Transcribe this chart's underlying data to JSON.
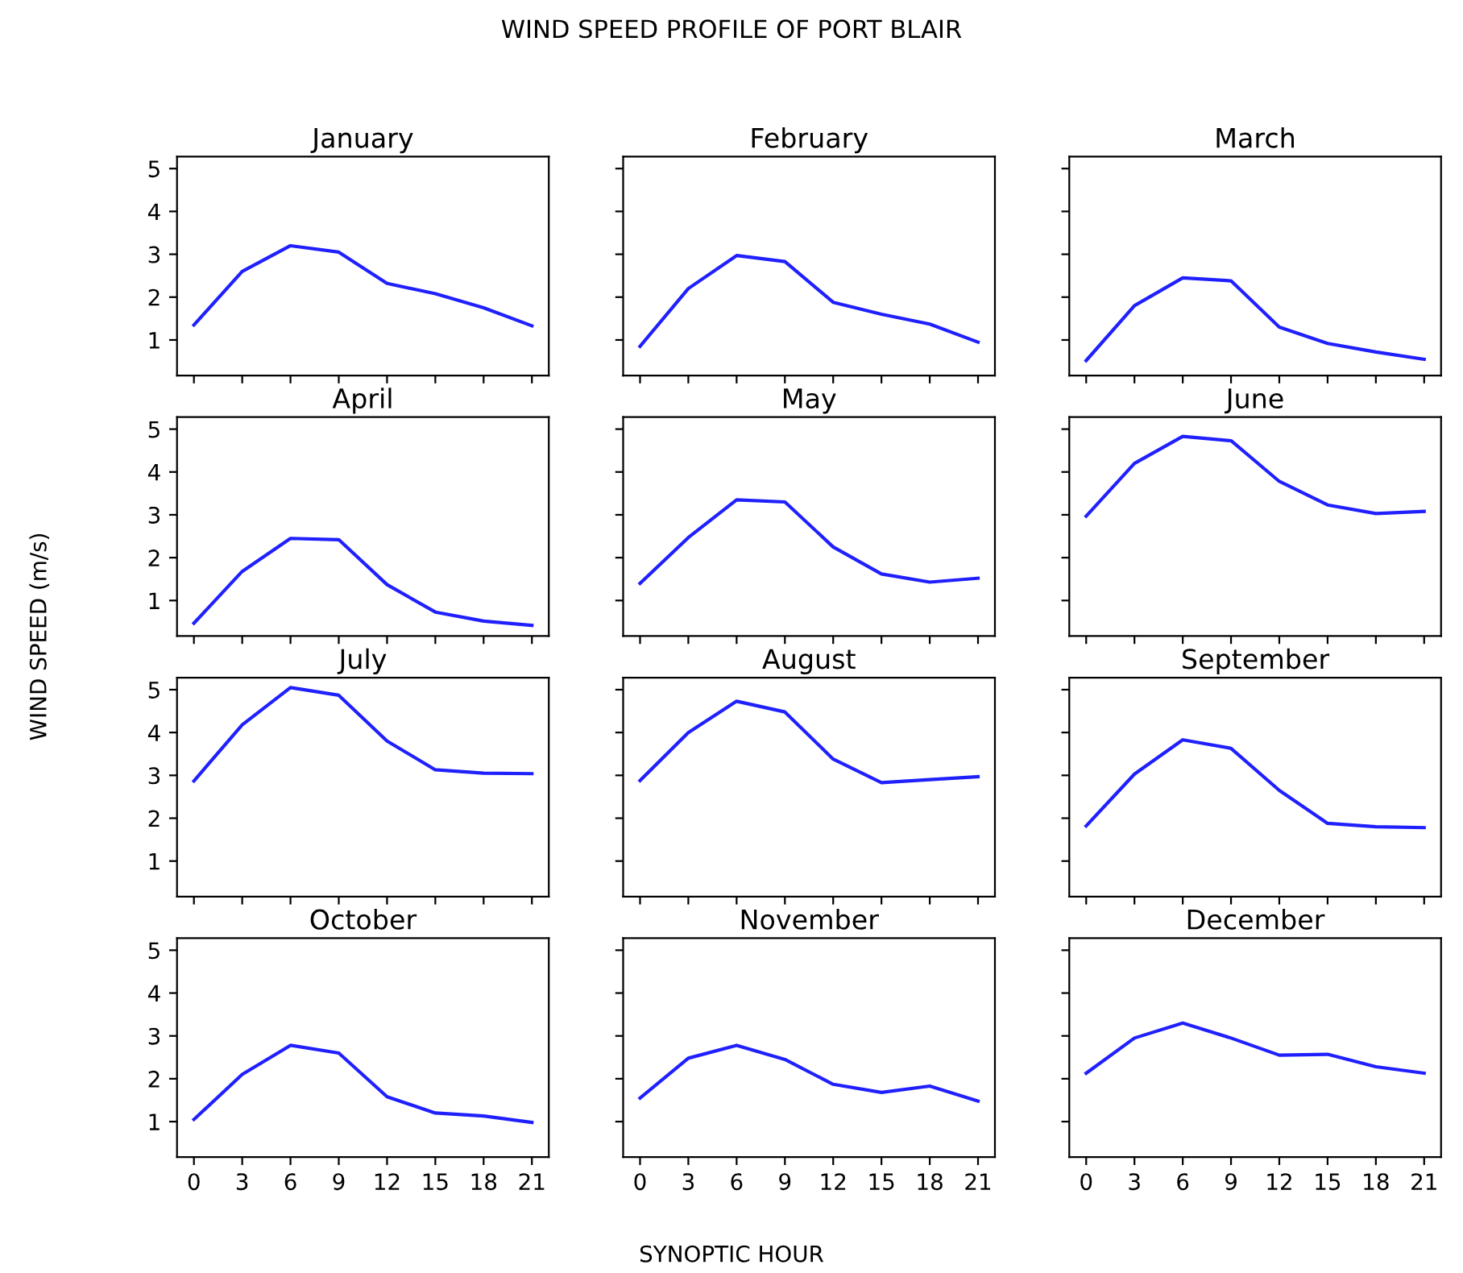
{
  "chart_data": [
    {
      "type": "line",
      "title": "January",
      "x": [
        0,
        3,
        6,
        9,
        12,
        15,
        18,
        21
      ],
      "xlim": [
        -1.05,
        22.05
      ],
      "xticks": [
        0,
        3,
        6,
        9,
        12,
        15,
        18,
        21
      ],
      "ylim": [
        0.17,
        5.28
      ],
      "yticks": [
        1,
        2,
        3,
        4,
        5
      ],
      "tick_labels": "y",
      "series": [
        {
          "color": "#2020ff",
          "values": [
            1.35,
            2.6,
            3.2,
            3.05,
            2.32,
            2.08,
            1.75,
            1.33
          ]
        }
      ]
    },
    {
      "type": "line",
      "title": "February",
      "x": [
        0,
        3,
        6,
        9,
        12,
        15,
        18,
        21
      ],
      "xlim": [
        -1.05,
        22.05
      ],
      "xticks": [
        0,
        3,
        6,
        9,
        12,
        15,
        18,
        21
      ],
      "ylim": [
        0.17,
        5.28
      ],
      "yticks": [
        1,
        2,
        3,
        4,
        5
      ],
      "tick_labels": false,
      "series": [
        {
          "color": "#2020ff",
          "values": [
            0.85,
            2.2,
            2.97,
            2.83,
            1.88,
            1.6,
            1.37,
            0.95
          ]
        }
      ]
    },
    {
      "type": "line",
      "title": "March",
      "x": [
        0,
        3,
        6,
        9,
        12,
        15,
        18,
        21
      ],
      "xlim": [
        -1.05,
        22.05
      ],
      "xticks": [
        0,
        3,
        6,
        9,
        12,
        15,
        18,
        21
      ],
      "ylim": [
        0.17,
        5.28
      ],
      "yticks": [
        1,
        2,
        3,
        4,
        5
      ],
      "tick_labels": false,
      "series": [
        {
          "color": "#2020ff",
          "values": [
            0.52,
            1.8,
            2.45,
            2.38,
            1.3,
            0.92,
            0.72,
            0.55
          ]
        }
      ]
    },
    {
      "type": "line",
      "title": "April",
      "x": [
        0,
        3,
        6,
        9,
        12,
        15,
        18,
        21
      ],
      "xlim": [
        -1.05,
        22.05
      ],
      "xticks": [
        0,
        3,
        6,
        9,
        12,
        15,
        18,
        21
      ],
      "ylim": [
        0.17,
        5.28
      ],
      "yticks": [
        1,
        2,
        3,
        4,
        5
      ],
      "tick_labels": "y",
      "series": [
        {
          "color": "#2020ff",
          "values": [
            0.47,
            1.68,
            2.45,
            2.42,
            1.37,
            0.73,
            0.52,
            0.42
          ]
        }
      ]
    },
    {
      "type": "line",
      "title": "May",
      "x": [
        0,
        3,
        6,
        9,
        12,
        15,
        18,
        21
      ],
      "xlim": [
        -1.05,
        22.05
      ],
      "xticks": [
        0,
        3,
        6,
        9,
        12,
        15,
        18,
        21
      ],
      "ylim": [
        0.17,
        5.28
      ],
      "yticks": [
        1,
        2,
        3,
        4,
        5
      ],
      "tick_labels": false,
      "series": [
        {
          "color": "#2020ff",
          "values": [
            1.4,
            2.47,
            3.35,
            3.3,
            2.25,
            1.62,
            1.43,
            1.52
          ]
        }
      ]
    },
    {
      "type": "line",
      "title": "June",
      "x": [
        0,
        3,
        6,
        9,
        12,
        15,
        18,
        21
      ],
      "xlim": [
        -1.05,
        22.05
      ],
      "xticks": [
        0,
        3,
        6,
        9,
        12,
        15,
        18,
        21
      ],
      "ylim": [
        0.17,
        5.28
      ],
      "yticks": [
        1,
        2,
        3,
        4,
        5
      ],
      "tick_labels": false,
      "series": [
        {
          "color": "#2020ff",
          "values": [
            2.97,
            4.2,
            4.83,
            4.73,
            3.78,
            3.23,
            3.03,
            3.08
          ]
        }
      ]
    },
    {
      "type": "line",
      "title": "July",
      "x": [
        0,
        3,
        6,
        9,
        12,
        15,
        18,
        21
      ],
      "xlim": [
        -1.05,
        22.05
      ],
      "xticks": [
        0,
        3,
        6,
        9,
        12,
        15,
        18,
        21
      ],
      "ylim": [
        0.17,
        5.28
      ],
      "yticks": [
        1,
        2,
        3,
        4,
        5
      ],
      "tick_labels": "y",
      "series": [
        {
          "color": "#2020ff",
          "values": [
            2.87,
            4.18,
            5.05,
            4.87,
            3.8,
            3.13,
            3.05,
            3.04
          ]
        }
      ]
    },
    {
      "type": "line",
      "title": "August",
      "x": [
        0,
        3,
        6,
        9,
        12,
        15,
        18,
        21
      ],
      "xlim": [
        -1.05,
        22.05
      ],
      "xticks": [
        0,
        3,
        6,
        9,
        12,
        15,
        18,
        21
      ],
      "ylim": [
        0.17,
        5.28
      ],
      "yticks": [
        1,
        2,
        3,
        4,
        5
      ],
      "tick_labels": false,
      "series": [
        {
          "color": "#2020ff",
          "values": [
            2.88,
            4.0,
            4.73,
            4.48,
            3.38,
            2.83,
            2.9,
            2.97
          ]
        }
      ]
    },
    {
      "type": "line",
      "title": "September",
      "x": [
        0,
        3,
        6,
        9,
        12,
        15,
        18,
        21
      ],
      "xlim": [
        -1.05,
        22.05
      ],
      "xticks": [
        0,
        3,
        6,
        9,
        12,
        15,
        18,
        21
      ],
      "ylim": [
        0.17,
        5.28
      ],
      "yticks": [
        1,
        2,
        3,
        4,
        5
      ],
      "tick_labels": false,
      "series": [
        {
          "color": "#2020ff",
          "values": [
            1.82,
            3.03,
            3.83,
            3.63,
            2.65,
            1.88,
            1.8,
            1.78
          ]
        }
      ]
    },
    {
      "type": "line",
      "title": "October",
      "x": [
        0,
        3,
        6,
        9,
        12,
        15,
        18,
        21
      ],
      "xlim": [
        -1.05,
        22.05
      ],
      "xticks": [
        0,
        3,
        6,
        9,
        12,
        15,
        18,
        21
      ],
      "ylim": [
        0.17,
        5.28
      ],
      "yticks": [
        1,
        2,
        3,
        4,
        5
      ],
      "series": [
        {
          "color": "#2020ff",
          "values": [
            1.05,
            2.1,
            2.78,
            2.6,
            1.58,
            1.2,
            1.13,
            0.98
          ]
        }
      ]
    },
    {
      "type": "line",
      "title": "November",
      "x": [
        0,
        3,
        6,
        9,
        12,
        15,
        18,
        21
      ],
      "xlim": [
        -1.05,
        22.05
      ],
      "xticks": [
        0,
        3,
        6,
        9,
        12,
        15,
        18,
        21
      ],
      "ylim": [
        0.17,
        5.28
      ],
      "yticks": [
        1,
        2,
        3,
        4,
        5
      ],
      "tick_labels": "x",
      "series": [
        {
          "color": "#2020ff",
          "values": [
            1.55,
            2.48,
            2.78,
            2.45,
            1.87,
            1.68,
            1.83,
            1.48
          ]
        }
      ]
    },
    {
      "type": "line",
      "title": "December",
      "x": [
        0,
        3,
        6,
        9,
        12,
        15,
        18,
        21
      ],
      "xlim": [
        -1.05,
        22.05
      ],
      "xticks": [
        0,
        3,
        6,
        9,
        12,
        15,
        18,
        21
      ],
      "ylim": [
        0.17,
        5.28
      ],
      "yticks": [
        1,
        2,
        3,
        4,
        5
      ],
      "tick_labels": "x",
      "series": [
        {
          "color": "#2020ff",
          "values": [
            2.13,
            2.95,
            3.3,
            2.95,
            2.55,
            2.57,
            2.28,
            2.13
          ]
        }
      ]
    },
    {
      "type": "other",
      "title": "WIND SPEED PROFILE OF PORT BLAIR",
      "xlabel": "SYNOPTIC HOUR",
      "ylabel": "WIND SPEED (m/s)"
    }
  ]
}
